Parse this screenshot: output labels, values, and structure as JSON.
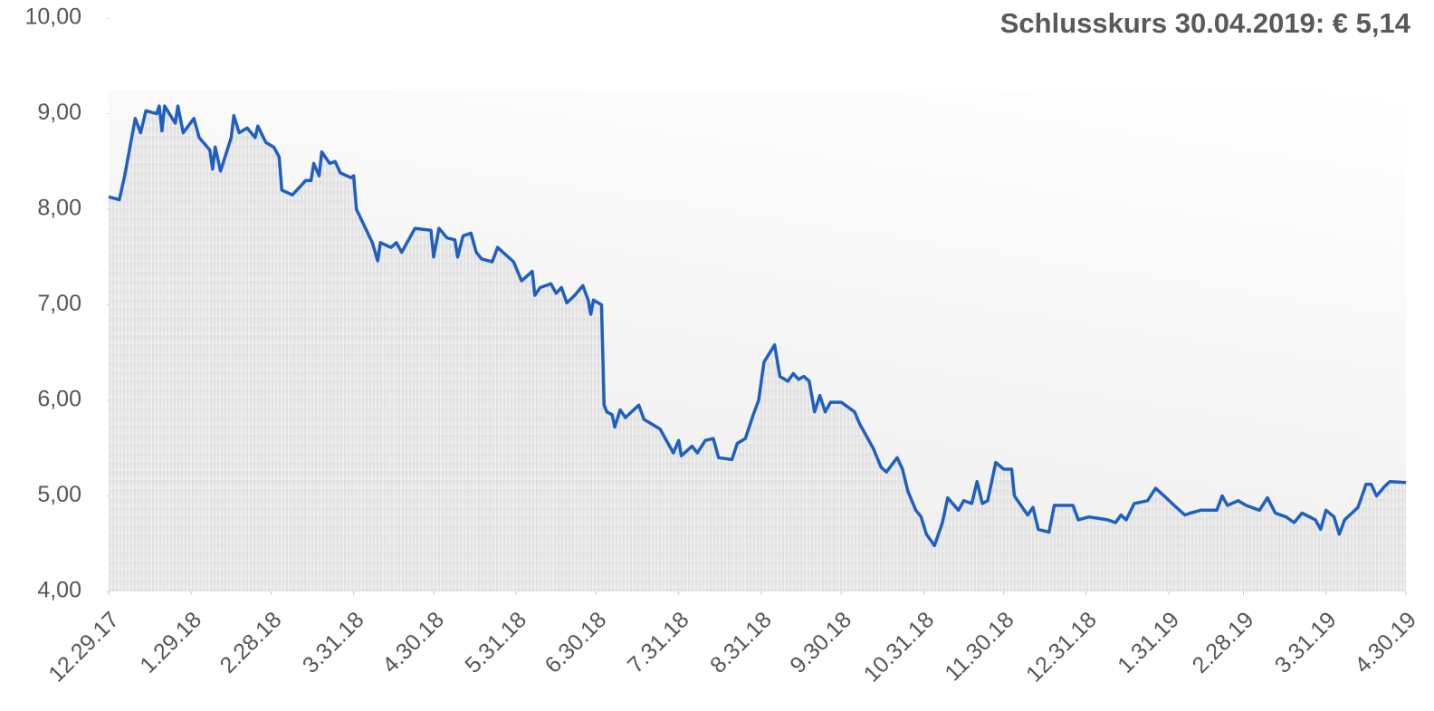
{
  "chart_data": {
    "type": "line",
    "title": "Schlusskurs 30.04.2019:  € 5,14",
    "color": "#1f5fbf",
    "area": true,
    "x": [
      "2017-12-29",
      "2018-01-02",
      "2018-01-04",
      "2018-01-08",
      "2018-01-10",
      "2018-01-12",
      "2018-01-16",
      "2018-01-17",
      "2018-01-18",
      "2018-01-19",
      "2018-01-23",
      "2018-01-24",
      "2018-01-26",
      "2018-01-30",
      "2018-02-01",
      "2018-02-05",
      "2018-02-06",
      "2018-02-07",
      "2018-02-09",
      "2018-02-13",
      "2018-02-14",
      "2018-02-16",
      "2018-02-19",
      "2018-02-22",
      "2018-02-23",
      "2018-02-26",
      "2018-03-01",
      "2018-03-03",
      "2018-03-04",
      "2018-03-08",
      "2018-03-13",
      "2018-03-15",
      "2018-03-16",
      "2018-03-18",
      "2018-03-19",
      "2018-03-22",
      "2018-03-24",
      "2018-03-26",
      "2018-03-30",
      "2018-03-31",
      "2018-04-01",
      "2018-04-07",
      "2018-04-09",
      "2018-04-10",
      "2018-04-14",
      "2018-04-16",
      "2018-04-18",
      "2018-04-23",
      "2018-04-29",
      "2018-04-30",
      "2018-05-02",
      "2018-05-05",
      "2018-05-08",
      "2018-05-09",
      "2018-05-11",
      "2018-05-14",
      "2018-05-16",
      "2018-05-18",
      "2018-05-22",
      "2018-05-24",
      "2018-05-30",
      "2018-06-02",
      "2018-06-04",
      "2018-06-06",
      "2018-06-07",
      "2018-06-09",
      "2018-06-13",
      "2018-06-15",
      "2018-06-17",
      "2018-06-19",
      "2018-06-22",
      "2018-06-25",
      "2018-06-27",
      "2018-06-28",
      "2018-06-29",
      "2018-07-02",
      "2018-07-03",
      "2018-07-04",
      "2018-07-06",
      "2018-07-07",
      "2018-07-09",
      "2018-07-11",
      "2018-07-16",
      "2018-07-18",
      "2018-07-24",
      "2018-07-27",
      "2018-07-29",
      "2018-07-31",
      "2018-08-01",
      "2018-08-05",
      "2018-08-07",
      "2018-08-10",
      "2018-08-13",
      "2018-08-15",
      "2018-08-20",
      "2018-08-22",
      "2018-08-25",
      "2018-08-28",
      "2018-08-30",
      "2018-09-01",
      "2018-09-05",
      "2018-09-07",
      "2018-09-10",
      "2018-09-12",
      "2018-09-14",
      "2018-09-16",
      "2018-09-18",
      "2018-09-20",
      "2018-09-22",
      "2018-09-24",
      "2018-09-26",
      "2018-09-30",
      "2018-10-05",
      "2018-10-07",
      "2018-10-12",
      "2018-10-15",
      "2018-10-17",
      "2018-10-21",
      "2018-10-23",
      "2018-10-25",
      "2018-10-28",
      "2018-10-30",
      "2018-11-01",
      "2018-11-04",
      "2018-11-07",
      "2018-11-09",
      "2018-11-13",
      "2018-11-15",
      "2018-11-18",
      "2018-11-20",
      "2018-11-22",
      "2018-11-24",
      "2018-11-27",
      "2018-11-30",
      "2018-12-03",
      "2018-12-04",
      "2018-12-07",
      "2018-12-09",
      "2018-12-11",
      "2018-12-13",
      "2018-12-17",
      "2018-12-19",
      "2018-12-26",
      "2018-12-28",
      "2019-01-01",
      "2019-01-08",
      "2019-01-11",
      "2019-01-13",
      "2019-01-15",
      "2019-01-18",
      "2019-01-23",
      "2019-01-26",
      "2019-01-30",
      "2019-02-02",
      "2019-02-06",
      "2019-02-08",
      "2019-02-12",
      "2019-02-18",
      "2019-02-20",
      "2019-02-22",
      "2019-02-26",
      "2019-03-01",
      "2019-03-06",
      "2019-03-09",
      "2019-03-12",
      "2019-03-16",
      "2019-03-19",
      "2019-03-22",
      "2019-03-27",
      "2019-03-29",
      "2019-03-31",
      "2019-04-03",
      "2019-04-05",
      "2019-04-07",
      "2019-04-12",
      "2019-04-15",
      "2019-04-17",
      "2019-04-19",
      "2019-04-22",
      "2019-04-24",
      "2019-04-30"
    ],
    "values": [
      8.13,
      8.1,
      8.35,
      8.95,
      8.8,
      9.03,
      9.0,
      9.08,
      8.82,
      9.08,
      8.9,
      9.08,
      8.8,
      8.95,
      8.75,
      8.62,
      8.42,
      8.65,
      8.4,
      8.75,
      8.98,
      8.8,
      8.85,
      8.75,
      8.87,
      8.7,
      8.65,
      8.55,
      8.2,
      8.15,
      8.3,
      8.3,
      8.48,
      8.35,
      8.6,
      8.48,
      8.5,
      8.38,
      8.33,
      8.35,
      8.0,
      7.65,
      7.46,
      7.65,
      7.6,
      7.65,
      7.55,
      7.8,
      7.78,
      7.5,
      7.8,
      7.7,
      7.68,
      7.5,
      7.72,
      7.75,
      7.55,
      7.48,
      7.45,
      7.6,
      7.45,
      7.25,
      7.3,
      7.35,
      7.1,
      7.18,
      7.22,
      7.12,
      7.18,
      7.02,
      7.1,
      7.2,
      7.05,
      6.9,
      7.05,
      7.0,
      5.95,
      5.88,
      5.85,
      5.72,
      5.9,
      5.82,
      5.95,
      5.8,
      5.7,
      5.55,
      5.45,
      5.58,
      5.42,
      5.52,
      5.45,
      5.58,
      5.6,
      5.4,
      5.38,
      5.55,
      5.6,
      5.85,
      6.0,
      6.4,
      6.58,
      6.25,
      6.2,
      6.28,
      6.22,
      6.25,
      6.2,
      5.88,
      6.05,
      5.88,
      5.98,
      5.98,
      5.88,
      5.75,
      5.5,
      5.3,
      5.25,
      5.4,
      5.28,
      5.05,
      4.85,
      4.78,
      4.6,
      4.48,
      4.72,
      4.98,
      4.85,
      4.95,
      4.92,
      5.15,
      4.92,
      4.95,
      5.35,
      5.28,
      5.28,
      5.0,
      4.88,
      4.8,
      4.88,
      4.65,
      4.62,
      4.9,
      4.9,
      4.75,
      4.78,
      4.75,
      4.72,
      4.8,
      4.75,
      4.92,
      4.95,
      5.08,
      4.98,
      4.9,
      4.8,
      4.82,
      4.85,
      4.85,
      5.0,
      4.9,
      4.95,
      4.9,
      4.85,
      4.98,
      4.82,
      4.78,
      4.72,
      4.82,
      4.75,
      4.65,
      4.85,
      4.78,
      4.6,
      4.75,
      4.88,
      5.12,
      5.12,
      5.0,
      5.1,
      5.15,
      5.14
    ],
    "xlim": [
      "2017-12-29",
      "2019-04-30"
    ],
    "xticks": [
      {
        "value": "2017-12-29",
        "label": "12.29.17"
      },
      {
        "value": "2018-01-29",
        "label": "1.29.18"
      },
      {
        "value": "2018-02-28",
        "label": "2.28.18"
      },
      {
        "value": "2018-03-31",
        "label": "3.31.18"
      },
      {
        "value": "2018-04-30",
        "label": "4.30.18"
      },
      {
        "value": "2018-05-31",
        "label": "5.31.18"
      },
      {
        "value": "2018-06-30",
        "label": "6.30.18"
      },
      {
        "value": "2018-07-31",
        "label": "7.31.18"
      },
      {
        "value": "2018-08-31",
        "label": "8.31.18"
      },
      {
        "value": "2018-09-30",
        "label": "9.30.18"
      },
      {
        "value": "2018-10-31",
        "label": "10.31.18"
      },
      {
        "value": "2018-11-30",
        "label": "11.30.18"
      },
      {
        "value": "2018-12-31",
        "label": "12.31.18"
      },
      {
        "value": "2019-01-31",
        "label": "1.31.19"
      },
      {
        "value": "2019-02-28",
        "label": "2.28.19"
      },
      {
        "value": "2019-03-31",
        "label": "3.31.19"
      },
      {
        "value": "2019-04-30",
        "label": "4.30.19"
      }
    ],
    "ylim": [
      4,
      10
    ],
    "yticks": [
      {
        "value": 4,
        "label": "4,00"
      },
      {
        "value": 5,
        "label": "5,00"
      },
      {
        "value": 6,
        "label": "6,00"
      },
      {
        "value": 7,
        "label": "7,00"
      },
      {
        "value": 8,
        "label": "8,00"
      },
      {
        "value": 9,
        "label": "9,00"
      },
      {
        "value": 10,
        "label": "10,00"
      }
    ]
  }
}
